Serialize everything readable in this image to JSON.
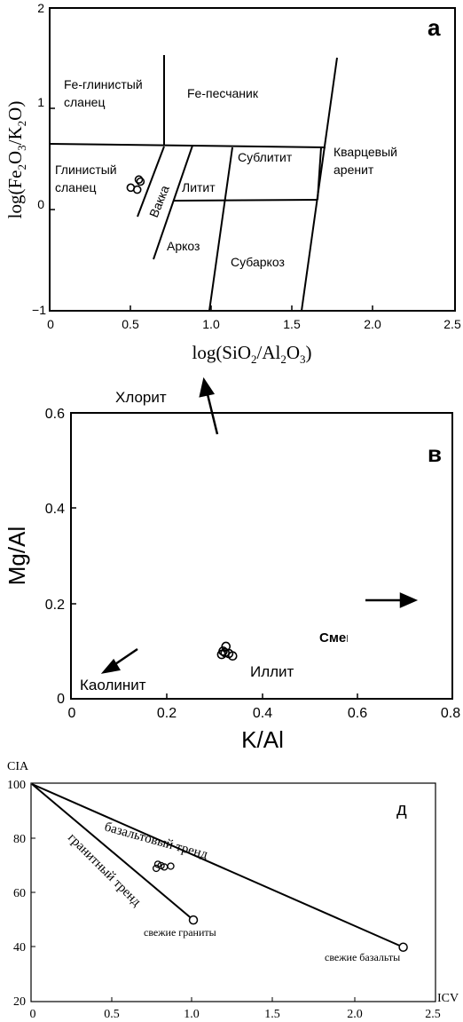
{
  "chart_data": [
    {
      "type": "scatter",
      "panel_label": "а",
      "xlabel_parts": [
        "log(SiO",
        "2",
        "/Al",
        "2",
        "O",
        "3",
        ")"
      ],
      "ylabel_parts": [
        "log(Fe",
        "2",
        "O",
        "3",
        "/K",
        "2",
        "O)"
      ],
      "xlim": [
        0,
        2.5
      ],
      "ylim": [
        -1,
        2
      ],
      "x_ticks": [
        "0",
        "0.5",
        "1.0",
        "1.5",
        "2.0",
        "2.5"
      ],
      "x_tick_values": [
        0,
        0.5,
        1.0,
        1.5,
        2.0,
        2.5
      ],
      "y_ticks": [
        "2",
        "1",
        "0",
        "−1"
      ],
      "y_tick_values": [
        2,
        1,
        0,
        -1
      ],
      "field_labels": [
        {
          "lines": [
            "Fe-глинистый",
            "сланец"
          ],
          "x": 0.1,
          "y": 1.18
        },
        {
          "lines": [
            "Fe-песчаник"
          ],
          "x": 0.85,
          "y": 1.1
        },
        {
          "lines": [
            "Глинистый",
            "сланец"
          ],
          "x": 0.03,
          "y": 0.35
        },
        {
          "lines": [
            "Вакка"
          ],
          "x": 0.62,
          "y": 0.1,
          "rotate": -68
        },
        {
          "lines": [
            "Литит"
          ],
          "x": 0.82,
          "y": 0.17
        },
        {
          "lines": [
            "Аркоз"
          ],
          "x": 0.72,
          "y": -0.45
        },
        {
          "lines": [
            "Сублитит"
          ],
          "x": 1.16,
          "y": 0.48
        },
        {
          "lines": [
            "Кварцевый",
            "арениt"
          ],
          "x": 1.76,
          "y": 0.55
        },
        {
          "lines": [
            "Субаркоз"
          ],
          "x": 1.12,
          "y": -0.62
        }
      ],
      "points": [
        {
          "x": 0.5,
          "y": 0.22
        },
        {
          "x": 0.54,
          "y": 0.2
        },
        {
          "x": 0.55,
          "y": 0.3
        },
        {
          "x": 0.56,
          "y": 0.28
        }
      ]
    },
    {
      "type": "scatter",
      "panel_label": "в",
      "xlabel": "K/Al",
      "ylabel": "Mg/Al",
      "xlim": [
        0,
        0.8
      ],
      "ylim": [
        0,
        0.6
      ],
      "x_ticks": [
        "0",
        "0.2",
        "0.4",
        "0.6",
        "0.8"
      ],
      "x_tick_values": [
        0,
        0.2,
        0.4,
        0.6,
        0.8
      ],
      "y_ticks": [
        "0",
        "0.2",
        "0.4",
        "0.6"
      ],
      "y_tick_values": [
        0,
        0.2,
        0.4,
        0.6
      ],
      "annotations": {
        "chlorite": "Хлорит",
        "kaolinite": "Каолинит",
        "illite": "Иллит"
      },
      "points": [
        {
          "x": 0.318,
          "y": 0.1
        },
        {
          "x": 0.324,
          "y": 0.11
        },
        {
          "x": 0.322,
          "y": 0.097
        },
        {
          "x": 0.33,
          "y": 0.095
        },
        {
          "x": 0.338,
          "y": 0.09
        },
        {
          "x": 0.315,
          "y": 0.093
        }
      ]
    },
    {
      "type": "scatter",
      "panel_label": "д",
      "xlabel": "ICV",
      "ylabel": "CIA",
      "xlim": [
        0,
        2.5
      ],
      "ylim": [
        20,
        100
      ],
      "x_ticks": [
        "0",
        "0.5",
        "1.0",
        "1.5",
        "2.0",
        "2.5"
      ],
      "x_tick_values": [
        0,
        0.5,
        1.0,
        1.5,
        2.0,
        2.5
      ],
      "y_ticks": [
        "100",
        "80",
        "60",
        "40",
        "20"
      ],
      "y_tick_values": [
        100,
        80,
        60,
        40,
        20
      ],
      "trends": [
        {
          "name": "гранитный тренд",
          "from": [
            0,
            100
          ],
          "to": [
            1.0,
            50
          ]
        },
        {
          "name": "базальтовый тренд",
          "from": [
            0,
            100
          ],
          "to": [
            2.3,
            40
          ]
        }
      ],
      "endmembers": [
        {
          "label": "свежие граниты",
          "x": 1.0,
          "y": 50
        },
        {
          "label": "свежие базальты",
          "x": 2.3,
          "y": 40
        }
      ],
      "points": [
        {
          "x": 0.77,
          "y": 69
        },
        {
          "x": 0.8,
          "y": 70
        },
        {
          "x": 0.82,
          "y": 69.5
        },
        {
          "x": 0.86,
          "y": 69.8
        },
        {
          "x": 0.78,
          "y": 70.5
        }
      ]
    }
  ]
}
